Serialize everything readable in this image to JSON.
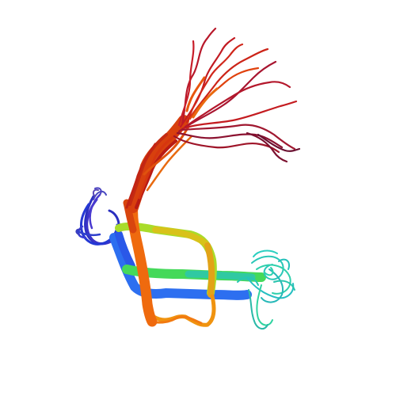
{
  "image": {
    "subject": "protein-ribbon-ensemble",
    "background": "#ffffff",
    "palette": {
      "blue": "#2233cc",
      "light_blue": "#2b7ff0",
      "cyan": "#22c9c0",
      "teal": "#2fd6a8",
      "green": "#4ce04a",
      "yellow_green": "#b8e12c",
      "yellow": "#e3c417",
      "orange": "#f07a0c",
      "red_orange": "#d8400e",
      "red": "#c01818",
      "dark_red": "#8a0f2a"
    }
  }
}
